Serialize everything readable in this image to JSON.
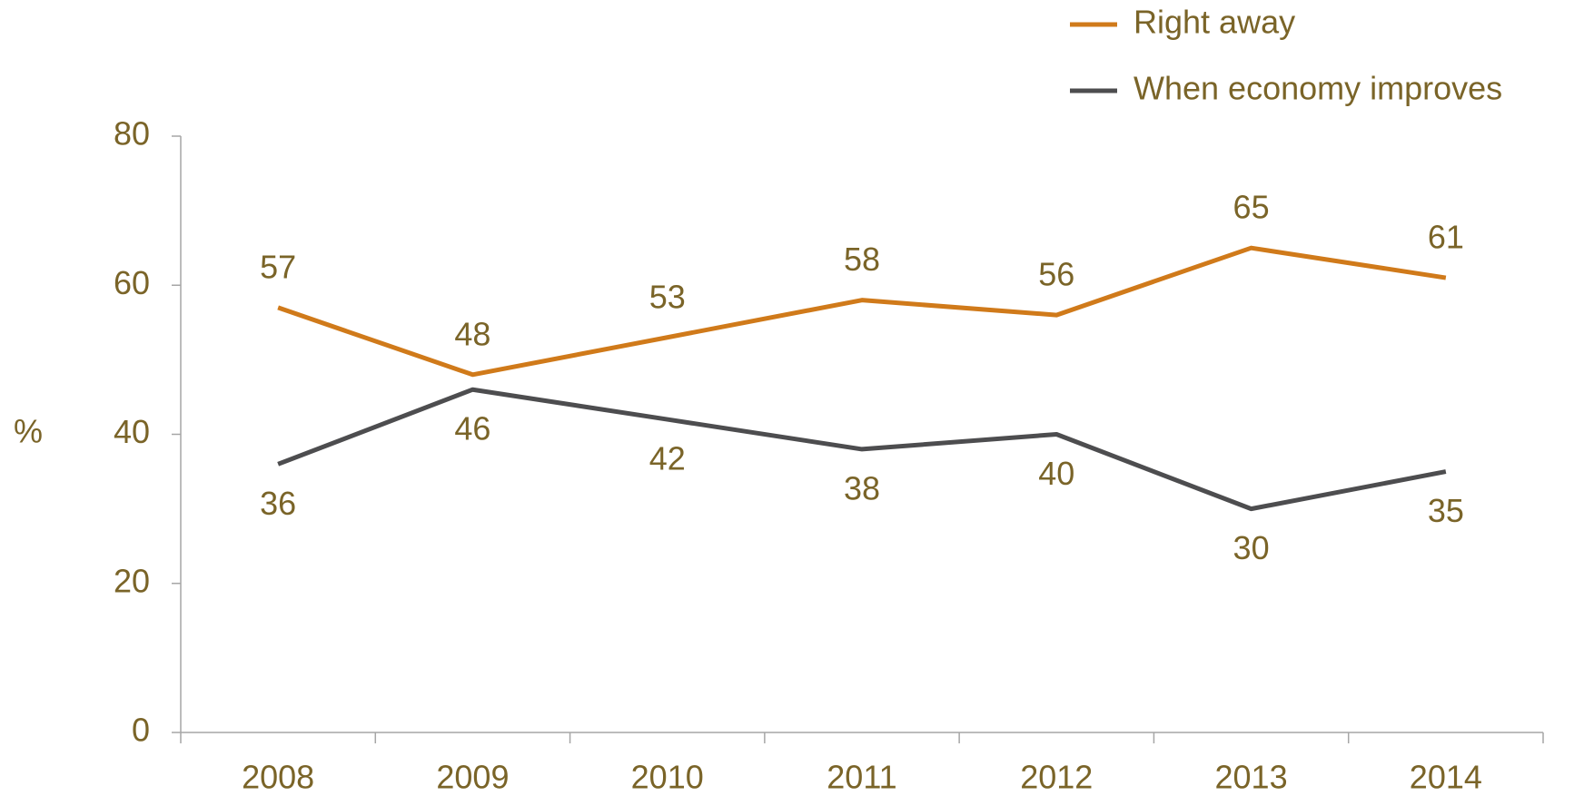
{
  "chart_data": {
    "type": "line",
    "y_label": "%",
    "categories": [
      "2008",
      "2009",
      "2010",
      "2011",
      "2012",
      "2013",
      "2014"
    ],
    "series": [
      {
        "name": "Right away",
        "color": "#d07a1a",
        "values": [
          57,
          48,
          53,
          58,
          56,
          65,
          61
        ]
      },
      {
        "name": "When economy improves",
        "color": "#4d4d4f",
        "values": [
          36,
          46,
          42,
          38,
          40,
          30,
          35
        ]
      }
    ],
    "ylim": [
      0,
      80
    ],
    "yticks": [
      0,
      20,
      40,
      60,
      80
    ],
    "grid": false,
    "legend": "top-right"
  }
}
